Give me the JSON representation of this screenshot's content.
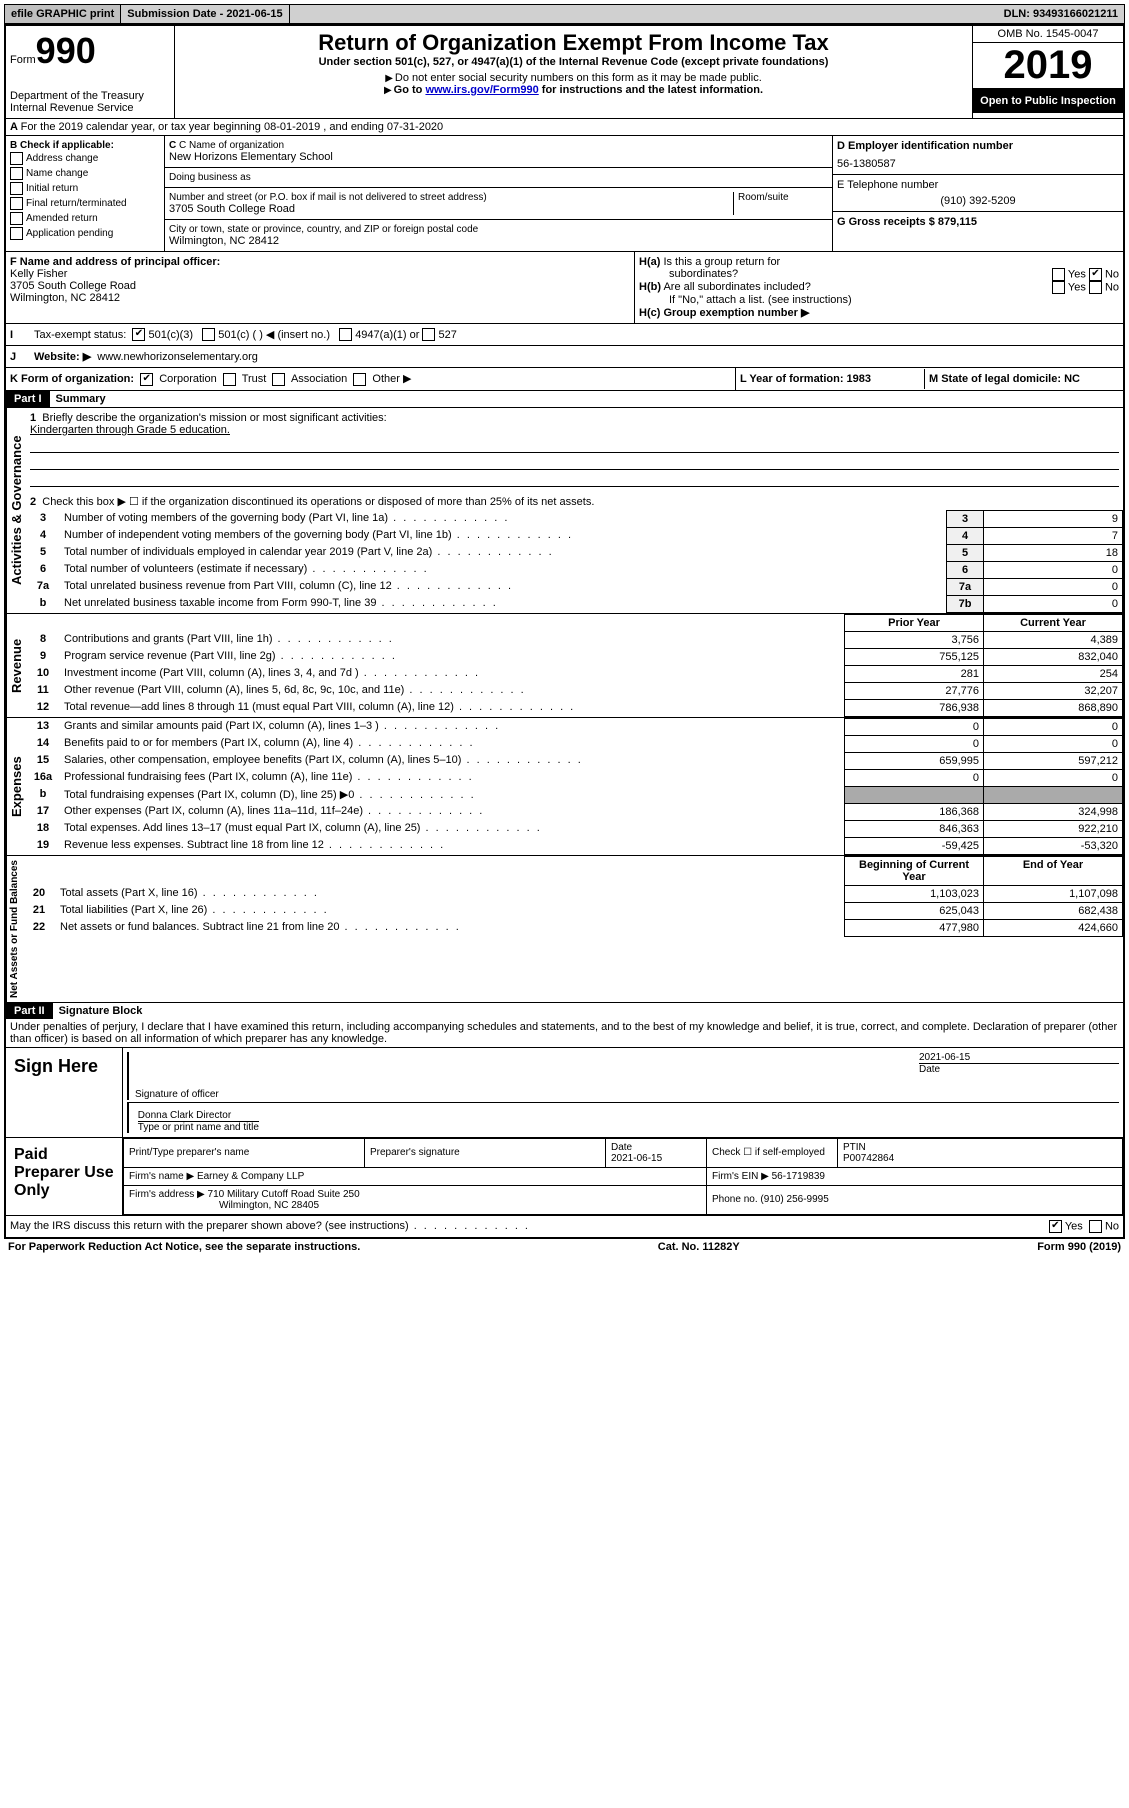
{
  "topbar": {
    "efile": "efile GRAPHIC print",
    "submission_label": "Submission Date - 2021-06-15",
    "dln_label": "DLN: 93493166021211"
  },
  "header": {
    "form_word": "Form",
    "form_num": "990",
    "dept": "Department of the Treasury",
    "irs": "Internal Revenue Service",
    "title": "Return of Organization Exempt From Income Tax",
    "subtitle": "Under section 501(c), 527, or 4947(a)(1) of the Internal Revenue Code (except private foundations)",
    "note1": "Do not enter social security numbers on this form as it may be made public.",
    "note2_pre": "Go to ",
    "note2_link": "www.irs.gov/Form990",
    "note2_post": " for instructions and the latest information.",
    "omb": "OMB No. 1545-0047",
    "year": "2019",
    "open": "Open to Public Inspection"
  },
  "sectionA": "For the 2019 calendar year, or tax year beginning 08-01-2019    , and ending 07-31-2020",
  "colB": {
    "label": "B Check if applicable:",
    "items": [
      "Address change",
      "Name change",
      "Initial return",
      "Final return/terminated",
      "Amended return",
      "Application pending"
    ]
  },
  "colC": {
    "name_label": "C Name of organization",
    "org_name": "New Horizons Elementary School",
    "dba_label": "Doing business as",
    "street_label": "Number and street (or P.O. box if mail is not delivered to street address)",
    "room_label": "Room/suite",
    "street": "3705 South College Road",
    "city_label": "City or town, state or province, country, and ZIP or foreign postal code",
    "city": "Wilmington, NC  28412"
  },
  "colD": {
    "ein_label": "D Employer identification number",
    "ein": "56-1380587",
    "phone_label": "E Telephone number",
    "phone": "(910) 392-5209",
    "gross_label": "G Gross receipts $ 879,115"
  },
  "rowF": {
    "label": "F  Name and address of principal officer:",
    "name": "Kelly Fisher",
    "addr1": "3705 South College Road",
    "addr2": "Wilmington, NC  28412"
  },
  "rowH": {
    "ha": "H(a)  Is this a group return for subordinates?",
    "hb": "H(b)  Are all subordinates included?",
    "hb_note": "If \"No,\" attach a list. (see instructions)",
    "hc": "H(c)  Group exemption number ▶"
  },
  "rowI": {
    "label": "Tax-exempt status:",
    "opt1": "501(c)(3)",
    "opt2": "501(c) (   ) ◀ (insert no.)",
    "opt3": "4947(a)(1) or",
    "opt4": "527"
  },
  "rowJ": {
    "label": "Website: ▶",
    "url": "www.newhorizonselementary.org"
  },
  "rowK": {
    "label": "K Form of organization:",
    "opts": [
      "Corporation",
      "Trust",
      "Association",
      "Other ▶"
    ],
    "L": "L Year of formation: 1983",
    "M": "M State of legal domicile: NC"
  },
  "part1": {
    "header": "Part I",
    "title": "Summary",
    "q1_label": "Briefly describe the organization's mission or most significant activities:",
    "q1_ans": "Kindergarten through Grade 5 education.",
    "q2": "Check this box ▶ ☐  if the organization discontinued its operations or disposed of more than 25% of its net assets.",
    "rows_gov": [
      {
        "n": "3",
        "t": "Number of voting members of the governing body (Part VI, line 1a)",
        "box": "3",
        "v": "9"
      },
      {
        "n": "4",
        "t": "Number of independent voting members of the governing body (Part VI, line 1b)",
        "box": "4",
        "v": "7"
      },
      {
        "n": "5",
        "t": "Total number of individuals employed in calendar year 2019 (Part V, line 2a)",
        "box": "5",
        "v": "18"
      },
      {
        "n": "6",
        "t": "Total number of volunteers (estimate if necessary)",
        "box": "6",
        "v": "0"
      },
      {
        "n": "7a",
        "t": "Total unrelated business revenue from Part VIII, column (C), line 12",
        "box": "7a",
        "v": "0"
      },
      {
        "n": "b",
        "t": "Net unrelated business taxable income from Form 990-T, line 39",
        "box": "7b",
        "v": "0"
      }
    ],
    "col_prior": "Prior Year",
    "col_current": "Current Year",
    "rows_rev": [
      {
        "n": "8",
        "t": "Contributions and grants (Part VIII, line 1h)",
        "p": "3,756",
        "c": "4,389"
      },
      {
        "n": "9",
        "t": "Program service revenue (Part VIII, line 2g)",
        "p": "755,125",
        "c": "832,040"
      },
      {
        "n": "10",
        "t": "Investment income (Part VIII, column (A), lines 3, 4, and 7d )",
        "p": "281",
        "c": "254"
      },
      {
        "n": "11",
        "t": "Other revenue (Part VIII, column (A), lines 5, 6d, 8c, 9c, 10c, and 11e)",
        "p": "27,776",
        "c": "32,207"
      },
      {
        "n": "12",
        "t": "Total revenue—add lines 8 through 11 (must equal Part VIII, column (A), line 12)",
        "p": "786,938",
        "c": "868,890"
      }
    ],
    "rows_exp": [
      {
        "n": "13",
        "t": "Grants and similar amounts paid (Part IX, column (A), lines 1–3 )",
        "p": "0",
        "c": "0"
      },
      {
        "n": "14",
        "t": "Benefits paid to or for members (Part IX, column (A), line 4)",
        "p": "0",
        "c": "0"
      },
      {
        "n": "15",
        "t": "Salaries, other compensation, employee benefits (Part IX, column (A), lines 5–10)",
        "p": "659,995",
        "c": "597,212"
      },
      {
        "n": "16a",
        "t": "Professional fundraising fees (Part IX, column (A), line 11e)",
        "p": "0",
        "c": "0"
      },
      {
        "n": "b",
        "t": "Total fundraising expenses (Part IX, column (D), line 25) ▶0",
        "p": "GRAY",
        "c": "GRAY"
      },
      {
        "n": "17",
        "t": "Other expenses (Part IX, column (A), lines 11a–11d, 11f–24e)",
        "p": "186,368",
        "c": "324,998"
      },
      {
        "n": "18",
        "t": "Total expenses. Add lines 13–17 (must equal Part IX, column (A), line 25)",
        "p": "846,363",
        "c": "922,210"
      },
      {
        "n": "19",
        "t": "Revenue less expenses. Subtract line 18 from line 12",
        "p": "-59,425",
        "c": "-53,320"
      }
    ],
    "col_begin": "Beginning of Current Year",
    "col_end": "End of Year",
    "rows_net": [
      {
        "n": "20",
        "t": "Total assets (Part X, line 16)",
        "p": "1,103,023",
        "c": "1,107,098"
      },
      {
        "n": "21",
        "t": "Total liabilities (Part X, line 26)",
        "p": "625,043",
        "c": "682,438"
      },
      {
        "n": "22",
        "t": "Net assets or fund balances. Subtract line 21 from line 20",
        "p": "477,980",
        "c": "424,660"
      }
    ]
  },
  "part2": {
    "header": "Part II",
    "title": "Signature Block",
    "decl": "Under penalties of perjury, I declare that I have examined this return, including accompanying schedules and statements, and to the best of my knowledge and belief, it is true, correct, and complete. Declaration of preparer (other than officer) is based on all information of which preparer has any knowledge."
  },
  "sign": {
    "label": "Sign Here",
    "sig_label": "Signature of officer",
    "date": "2021-06-15",
    "date_label": "Date",
    "name": "Donna Clark  Director",
    "name_label": "Type or print name and title"
  },
  "prep": {
    "label": "Paid Preparer Use Only",
    "h_name": "Print/Type preparer's name",
    "h_sig": "Preparer's signature",
    "h_date": "Date",
    "date": "2021-06-15",
    "h_check": "Check ☐ if self-employed",
    "h_ptin": "PTIN",
    "ptin": "P00742864",
    "firm_label": "Firm's name    ▶",
    "firm": "Earney & Company LLP",
    "ein_label": "Firm's EIN ▶",
    "ein": "56-1719839",
    "addr_label": "Firm's address ▶",
    "addr1": "710 Military Cutoff Road Suite 250",
    "addr2": "Wilmington, NC  28405",
    "phone_label": "Phone no.",
    "phone": "(910) 256-9995"
  },
  "discuss": "May the IRS discuss this return with the preparer shown above? (see instructions)",
  "footer": {
    "left": "For Paperwork Reduction Act Notice, see the separate instructions.",
    "mid": "Cat. No. 11282Y",
    "right": "Form 990 (2019)"
  },
  "labels": {
    "yes": "Yes",
    "no": "No",
    "gov": "Activities & Governance",
    "rev": "Revenue",
    "exp": "Expenses",
    "net": "Net Assets or Fund Balances"
  }
}
